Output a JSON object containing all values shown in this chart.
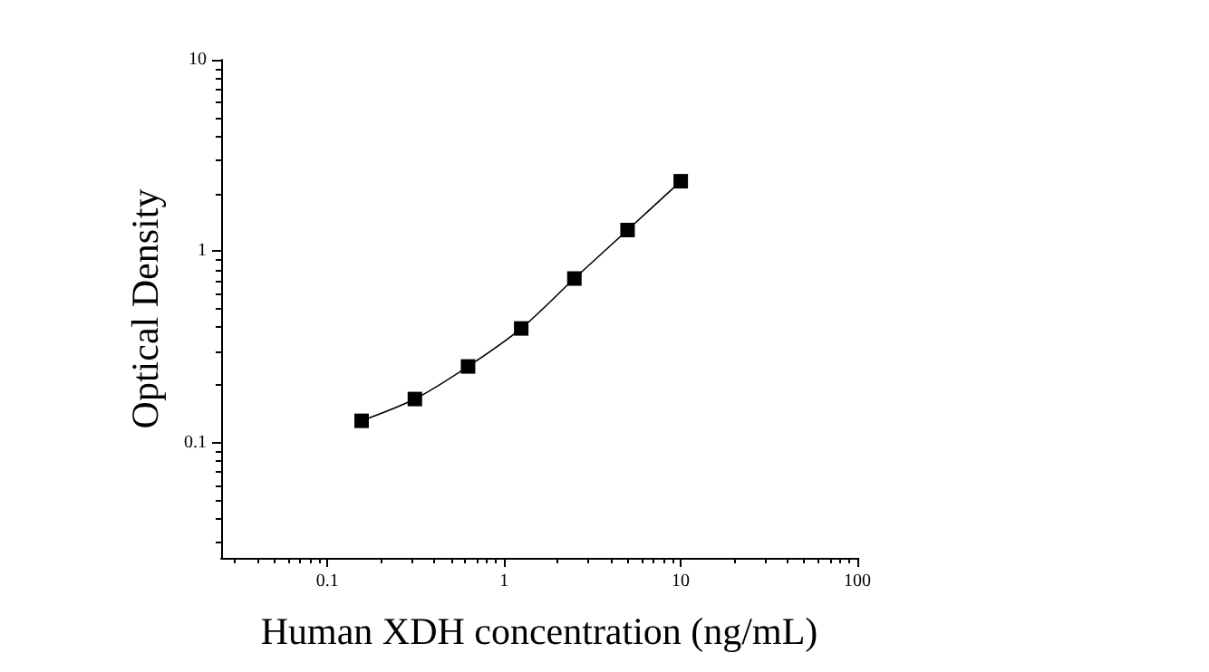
{
  "chart_data": {
    "type": "line",
    "xlabel": "Human XDH concentration (ng/mL)",
    "ylabel": "Optical Density",
    "x": [
      0.156,
      0.3125,
      0.625,
      1.25,
      2.5,
      5,
      10
    ],
    "series": [
      {
        "color": "#000000",
        "values": [
          0.13,
          0.169,
          0.25,
          0.395,
          0.72,
          1.29,
          2.32
        ]
      }
    ],
    "log": "xy",
    "xlim": [
      0.025,
      100
    ],
    "xticks": [
      0.1,
      1,
      10,
      100
    ],
    "ylim": [
      0.025,
      10
    ],
    "yticks": [
      0.1,
      1,
      10
    ],
    "marker": "square",
    "line_style": "solid",
    "grid": false
  }
}
